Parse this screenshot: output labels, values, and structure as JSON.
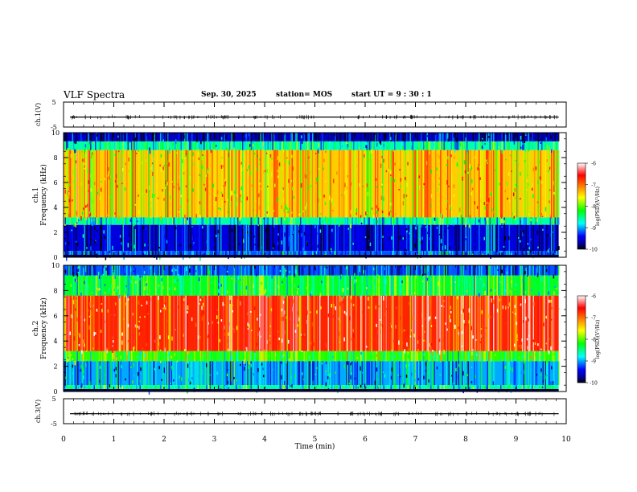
{
  "header": {
    "title": "VLF Spectra",
    "date": "Sep. 30, 2025",
    "station": "station= MOS",
    "start": "start  UT =   9 : 30 : 1"
  },
  "colorbar": {
    "label": "log(PSD)(V²/Hz)",
    "ticks": [
      "-6",
      "-7",
      "-8",
      "-9",
      "-10"
    ],
    "colors": [
      "#ffffff",
      "#ff0000",
      "#ffff00",
      "#00ff00",
      "#00ffff",
      "#0000ff",
      "#000080",
      "#000000"
    ]
  },
  "chart_data": [
    {
      "type": "line",
      "panel": "ch1-waveform",
      "ylabel": "ch.1(V)",
      "ylim": [
        -5,
        5
      ],
      "yticks": [
        "5",
        "-5"
      ],
      "xlim": [
        0,
        10
      ],
      "series": [
        {
          "values": [
            -1,
            -1
          ]
        }
      ]
    },
    {
      "type": "heatmap",
      "panel": "ch1-spectrogram",
      "ylabel": "ch.1\nFrequency (kHz)",
      "yticks": [
        "10",
        "8",
        "6",
        "4",
        "2",
        "0"
      ],
      "ylim": [
        0,
        10
      ],
      "xlim": [
        0,
        9.85
      ],
      "zlim": [
        -10,
        -6
      ],
      "bands": [
        {
          "f0": 9.3,
          "f1": 10,
          "z": -9.6
        },
        {
          "f0": 8.6,
          "f1": 9.3,
          "z": -8.6
        },
        {
          "f0": 3.2,
          "f1": 8.6,
          "z": -7.4
        },
        {
          "f0": 2.6,
          "f1": 3.2,
          "z": -8.6
        },
        {
          "f0": 0.5,
          "f1": 2.6,
          "z": -9.5
        },
        {
          "f0": 0,
          "f1": 0.5,
          "z": -9.2
        }
      ]
    },
    {
      "type": "heatmap",
      "panel": "ch2-spectrogram",
      "ylabel": "ch.2\nFrequency (kHz)",
      "yticks": [
        "10",
        "8",
        "6",
        "4",
        "2",
        "0"
      ],
      "ylim": [
        0,
        10
      ],
      "xlim": [
        0,
        9.85
      ],
      "zlim": [
        -10,
        -6
      ],
      "bands": [
        {
          "f0": 9.2,
          "f1": 10,
          "z": -9.2
        },
        {
          "f0": 7.6,
          "f1": 9.2,
          "z": -8.3
        },
        {
          "f0": 3.2,
          "f1": 7.6,
          "z": -6.7
        },
        {
          "f0": 2.4,
          "f1": 3.2,
          "z": -8.1
        },
        {
          "f0": 0.5,
          "f1": 2.4,
          "z": -9.0
        },
        {
          "f0": 0,
          "f1": 0.5,
          "z": -8.6
        }
      ]
    },
    {
      "type": "line",
      "panel": "ch3-waveform",
      "ylabel": "ch.3(V)",
      "ylim": [
        -5,
        5
      ],
      "yticks": [
        "5",
        "-5"
      ],
      "xlim": [
        0,
        10
      ],
      "xlabel": "Time  (min)",
      "xticks": [
        "0",
        "1",
        "2",
        "3",
        "4",
        "5",
        "6",
        "7",
        "8",
        "9",
        "10"
      ],
      "series": [
        {
          "values": [
            -1,
            -1
          ]
        }
      ]
    }
  ]
}
